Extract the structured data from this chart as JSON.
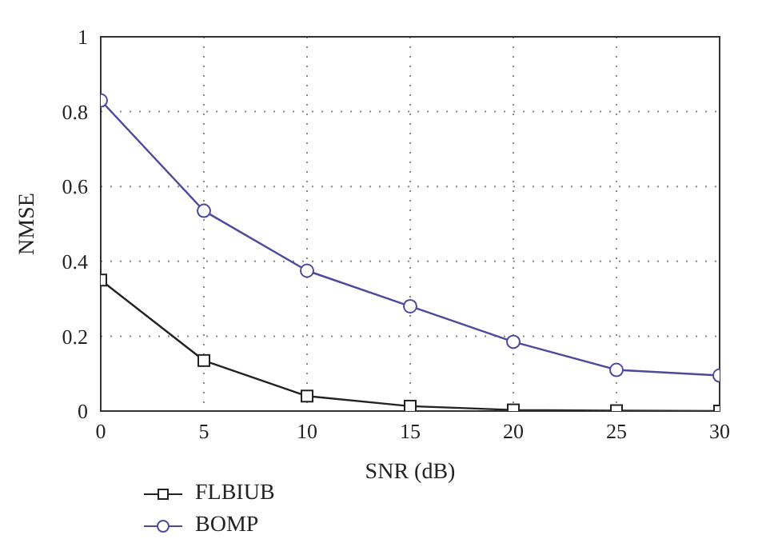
{
  "chart_data": {
    "type": "line",
    "xlabel": "SNR (dB)",
    "ylabel": "NMSE",
    "x": [
      0,
      5,
      10,
      15,
      20,
      25,
      30
    ],
    "series": [
      {
        "name": "FLBIUB",
        "color": "#222222",
        "marker": "square",
        "values": [
          0.35,
          0.135,
          0.04,
          0.013,
          0.003,
          0.001,
          0.0
        ]
      },
      {
        "name": "BOMP",
        "color": "#4b4a9b",
        "marker": "circle",
        "values": [
          0.83,
          0.535,
          0.375,
          0.28,
          0.185,
          0.11,
          0.095
        ]
      }
    ],
    "xlim": [
      0,
      30
    ],
    "xticks": [
      0,
      5,
      10,
      15,
      20,
      25,
      30
    ],
    "ylim": [
      0,
      1
    ],
    "yticks": [
      0,
      0.2,
      0.4,
      0.6,
      0.8,
      1
    ],
    "grid": true,
    "legend": "bottom left",
    "line_style": "solid"
  }
}
